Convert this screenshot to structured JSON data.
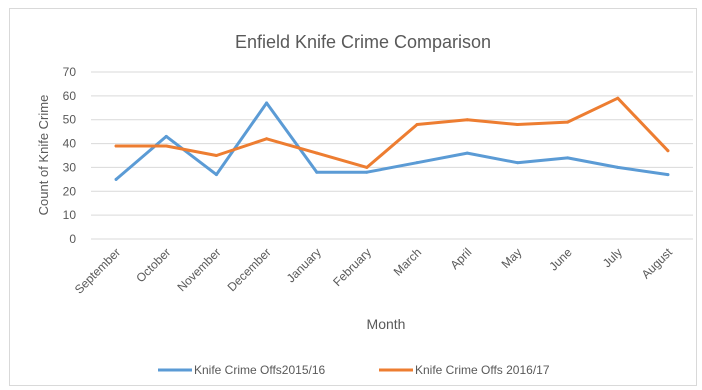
{
  "chart_data": {
    "type": "line",
    "title": "Enfield Knife Crime Comparison",
    "xlabel": "Month",
    "ylabel": "Count of Knife Crime",
    "ylim": [
      0,
      70
    ],
    "ytick_step": 10,
    "grid": true,
    "legend_position": "bottom",
    "categories": [
      "September",
      "October",
      "November",
      "December",
      "January",
      "February",
      "March",
      "April",
      "May",
      "June",
      "July",
      "August"
    ],
    "series": [
      {
        "name": "Knife Crime Offs2015/16",
        "color": "#5b9bd5",
        "values": [
          25,
          43,
          27,
          57,
          28,
          28,
          32,
          36,
          32,
          34,
          30,
          27
        ]
      },
      {
        "name": "Knife Crime Offs 2016/17",
        "color": "#ed7d31",
        "values": [
          39,
          39,
          35,
          42,
          36,
          30,
          48,
          50,
          48,
          49,
          59,
          37
        ]
      }
    ]
  }
}
